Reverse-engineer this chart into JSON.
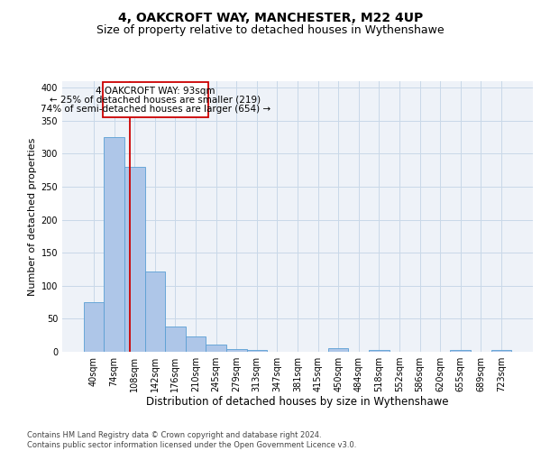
{
  "title": "4, OAKCROFT WAY, MANCHESTER, M22 4UP",
  "subtitle": "Size of property relative to detached houses in Wythenshawe",
  "xlabel": "Distribution of detached houses by size in Wythenshawe",
  "ylabel": "Number of detached properties",
  "footnote": "Contains HM Land Registry data © Crown copyright and database right 2024.\nContains public sector information licensed under the Open Government Licence v3.0.",
  "bar_labels": [
    "40sqm",
    "74sqm",
    "108sqm",
    "142sqm",
    "176sqm",
    "210sqm",
    "245sqm",
    "279sqm",
    "313sqm",
    "347sqm",
    "381sqm",
    "415sqm",
    "450sqm",
    "484sqm",
    "518sqm",
    "552sqm",
    "586sqm",
    "620sqm",
    "655sqm",
    "689sqm",
    "723sqm"
  ],
  "bar_values": [
    75,
    325,
    280,
    122,
    38,
    23,
    11,
    4,
    3,
    0,
    0,
    0,
    5,
    0,
    3,
    0,
    0,
    0,
    3,
    0,
    3
  ],
  "bar_color": "#aec6e8",
  "bar_edge_color": "#5a9fd4",
  "bar_width": 1.0,
  "vline_x": 1.75,
  "vline_color": "#cc0000",
  "annotation_line1": "4 OAKCROFT WAY: 93sqm",
  "annotation_line2": "← 25% of detached houses are smaller (219)",
  "annotation_line3": "74% of semi-detached houses are larger (654) →",
  "annotation_box_color": "#cc0000",
  "ylim": [
    0,
    410
  ],
  "yticks": [
    0,
    50,
    100,
    150,
    200,
    250,
    300,
    350,
    400
  ],
  "grid_color": "#c8d8e8",
  "bg_color": "#eef2f8",
  "title_fontsize": 10,
  "subtitle_fontsize": 9,
  "xlabel_fontsize": 8.5,
  "ylabel_fontsize": 8,
  "tick_fontsize": 7,
  "annot_fontsize": 7.5
}
